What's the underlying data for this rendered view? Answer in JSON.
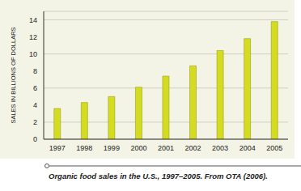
{
  "chart_data": {
    "type": "bar",
    "caption": "Organic food sales in the U.S., 1997–2005. From OTA (2006).",
    "y_label": "SALES IN BILLIONS OF DOLLARS",
    "categories": [
      "1997",
      "1998",
      "1999",
      "2000",
      "2001",
      "2002",
      "2003",
      "2004",
      "2005"
    ],
    "values": [
      3.6,
      4.3,
      5.0,
      6.1,
      7.4,
      8.6,
      10.4,
      11.8,
      13.8
    ],
    "color": "#d4dc22",
    "ylim": [
      0,
      15
    ],
    "yticks": [
      0,
      2,
      4,
      6,
      8,
      10,
      12,
      14
    ],
    "grid": true
  }
}
